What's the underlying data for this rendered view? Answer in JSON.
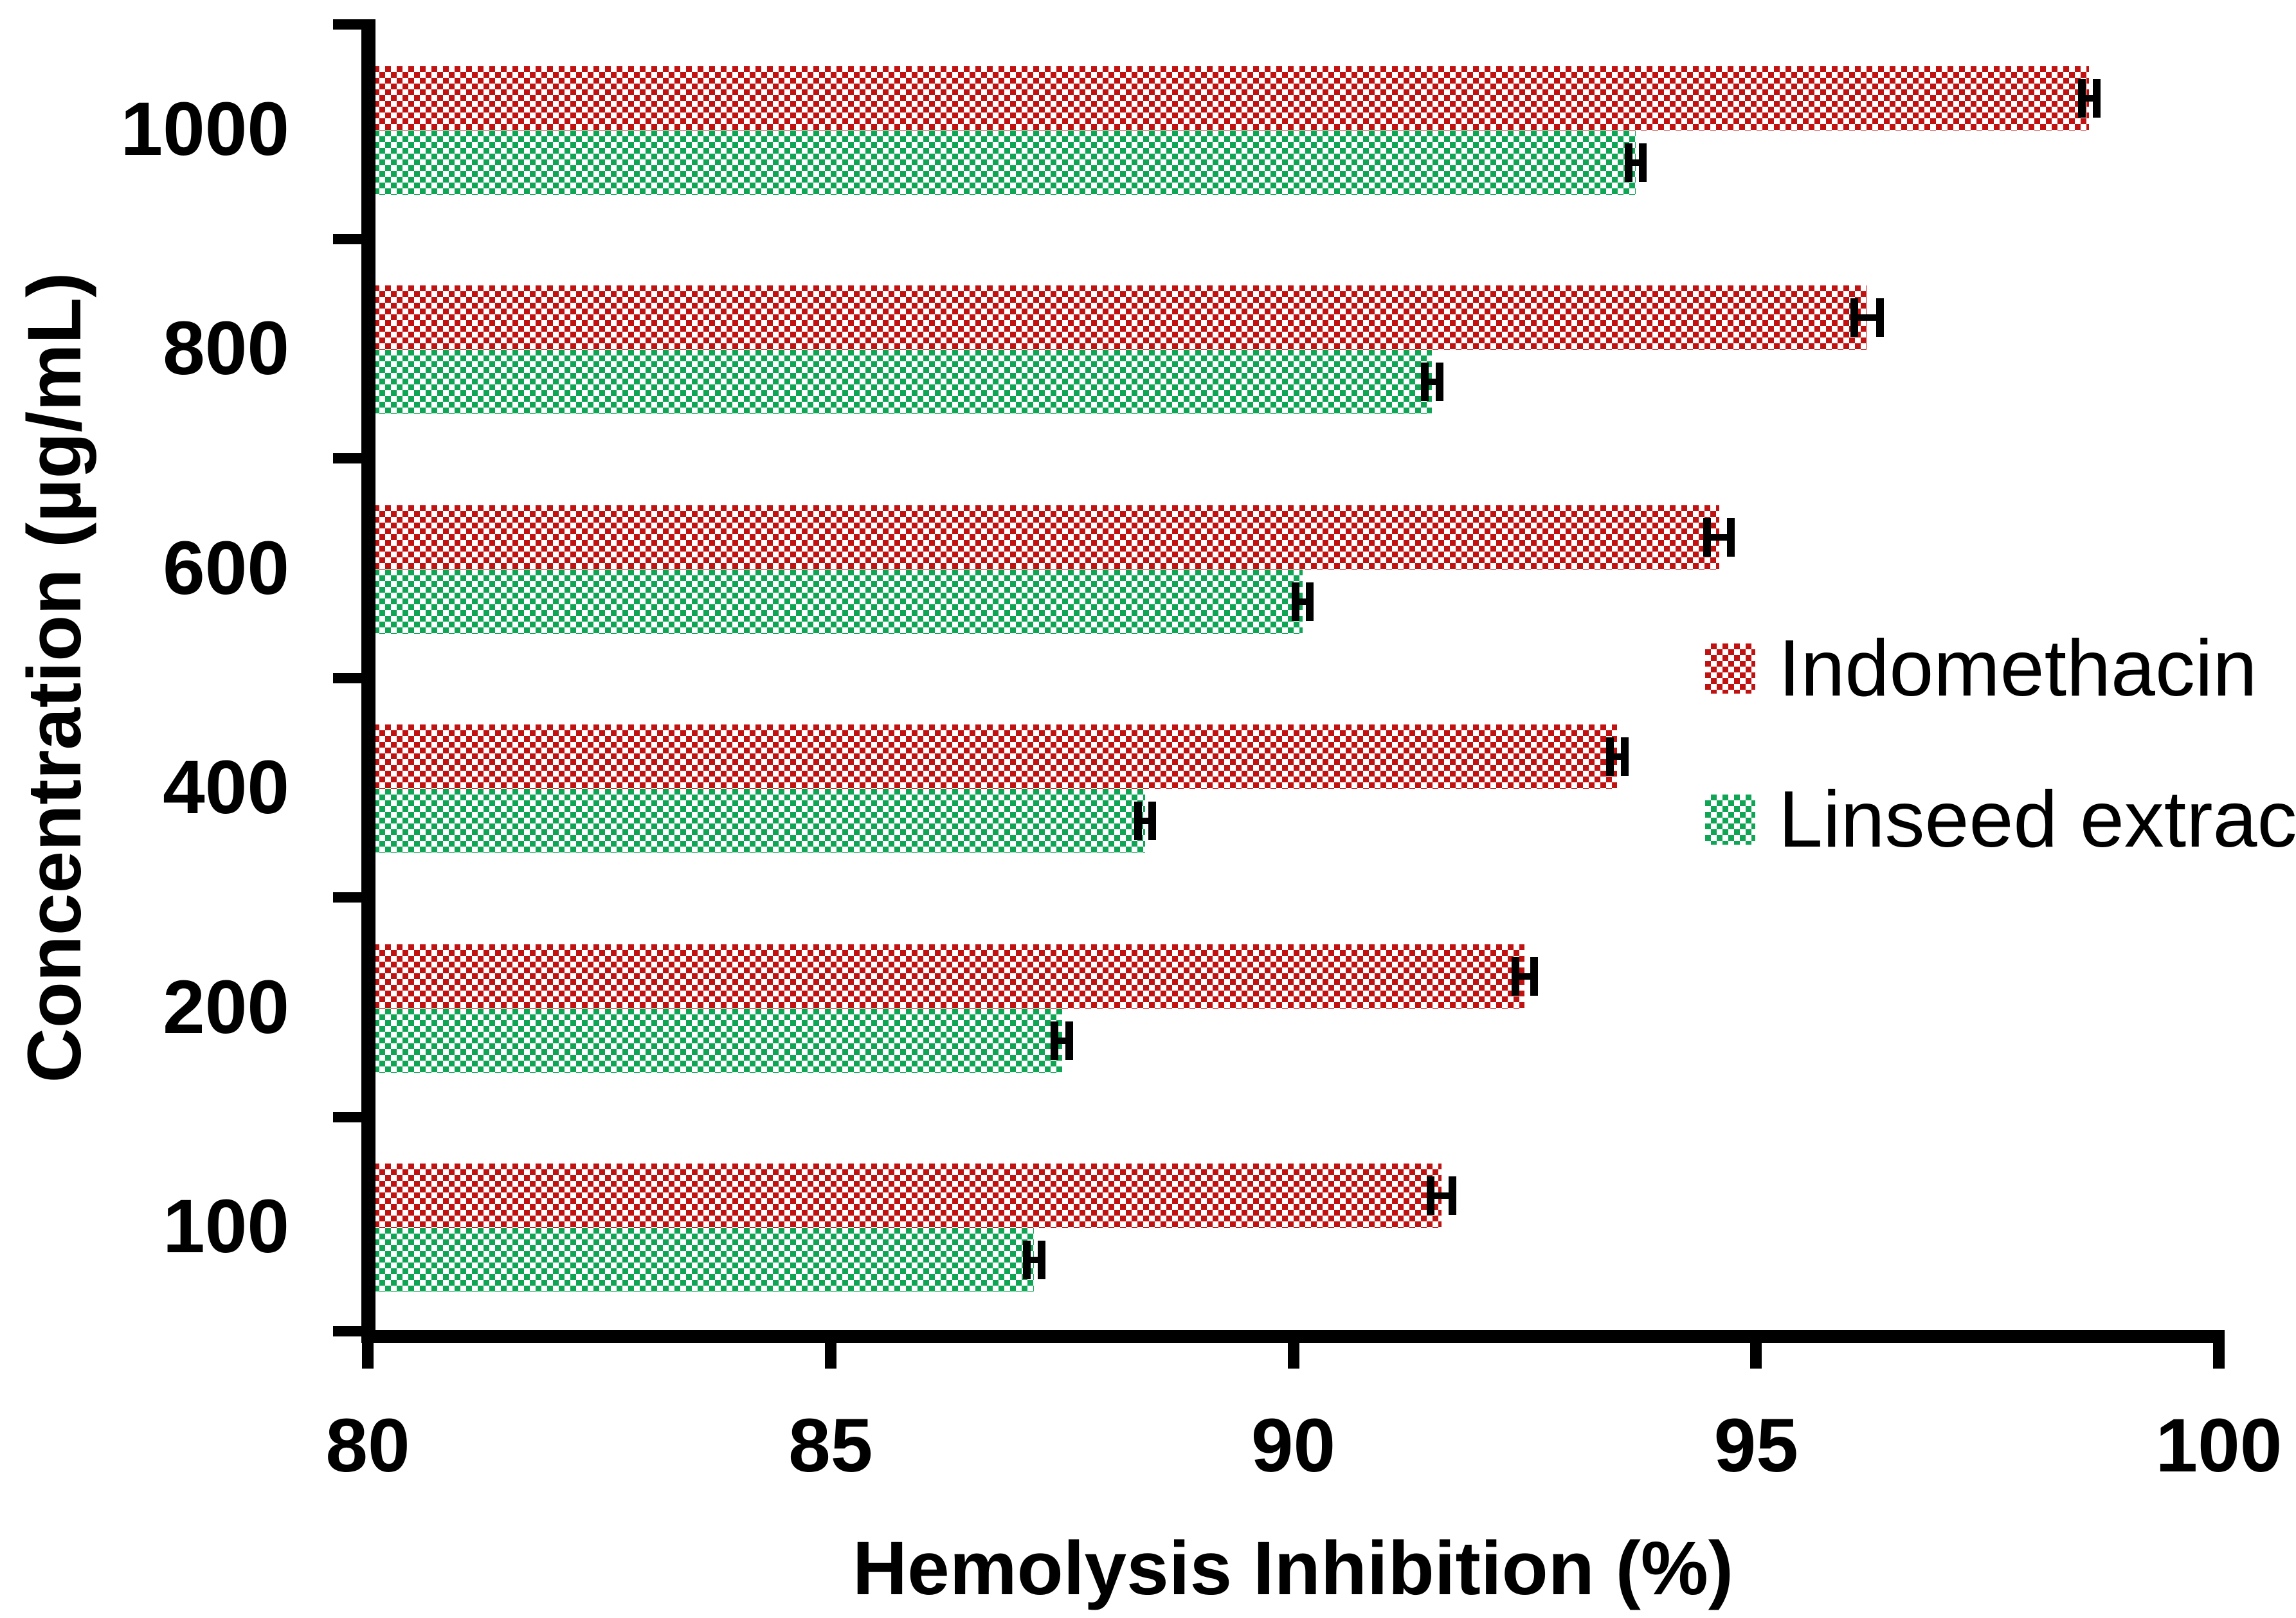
{
  "figure": {
    "background": "#ffffff",
    "ink_color": "#000000"
  },
  "chart_data": {
    "type": "bar",
    "orientation": "horizontal",
    "title": "",
    "xlabel": "Hemolysis Inhibition (%)",
    "ylabel": "Concentration (µg/mL)",
    "categories": [
      "1000",
      "800",
      "600",
      "400",
      "200",
      "100"
    ],
    "x_ticks": [
      "80",
      "85",
      "90",
      "95",
      "100"
    ],
    "xlim": [
      80,
      100
    ],
    "grid": false,
    "legend_position": "inside-right",
    "error_bar_color": "#000000",
    "axis_color": "#000000",
    "series": [
      {
        "name": "Indomethacin",
        "color": "#c11212",
        "values": [
          98.6,
          96.2,
          94.6,
          93.5,
          92.5,
          91.6
        ],
        "errors": [
          0.12,
          0.18,
          0.17,
          0.12,
          0.14,
          0.16
        ]
      },
      {
        "name": "Linseed extract",
        "color": "#10a455",
        "values": [
          93.7,
          91.5,
          90.1,
          88.4,
          87.5,
          87.2
        ],
        "errors": [
          0.12,
          0.12,
          0.12,
          0.12,
          0.12,
          0.12
        ]
      }
    ]
  }
}
